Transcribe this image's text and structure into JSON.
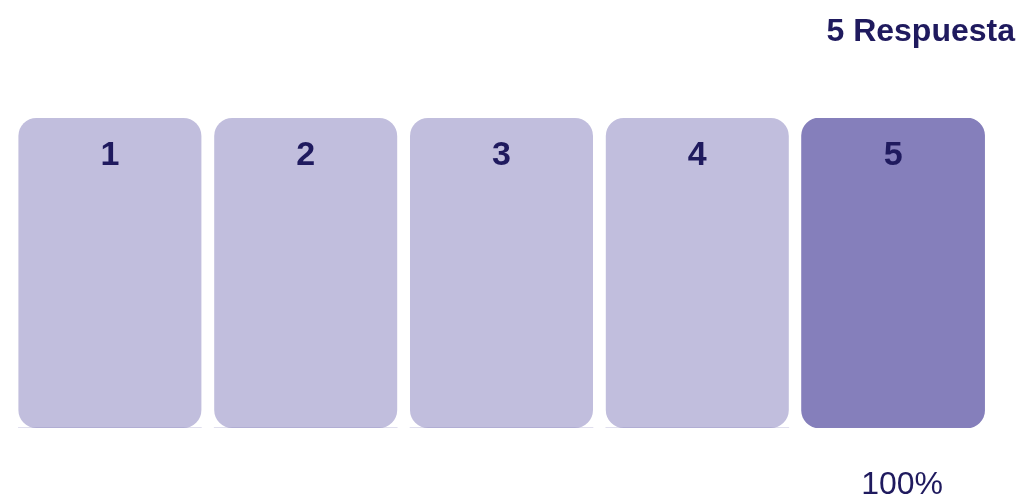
{
  "chart_data": {
    "type": "bar",
    "title": "5 Respuesta",
    "categories": [
      "1",
      "2",
      "3",
      "4",
      "5"
    ],
    "values": [
      0,
      0,
      0,
      0,
      100
    ],
    "value_labels": [
      null,
      null,
      null,
      null,
      "100%"
    ],
    "color": "#857fbb",
    "ylim": [
      0,
      100
    ]
  }
}
